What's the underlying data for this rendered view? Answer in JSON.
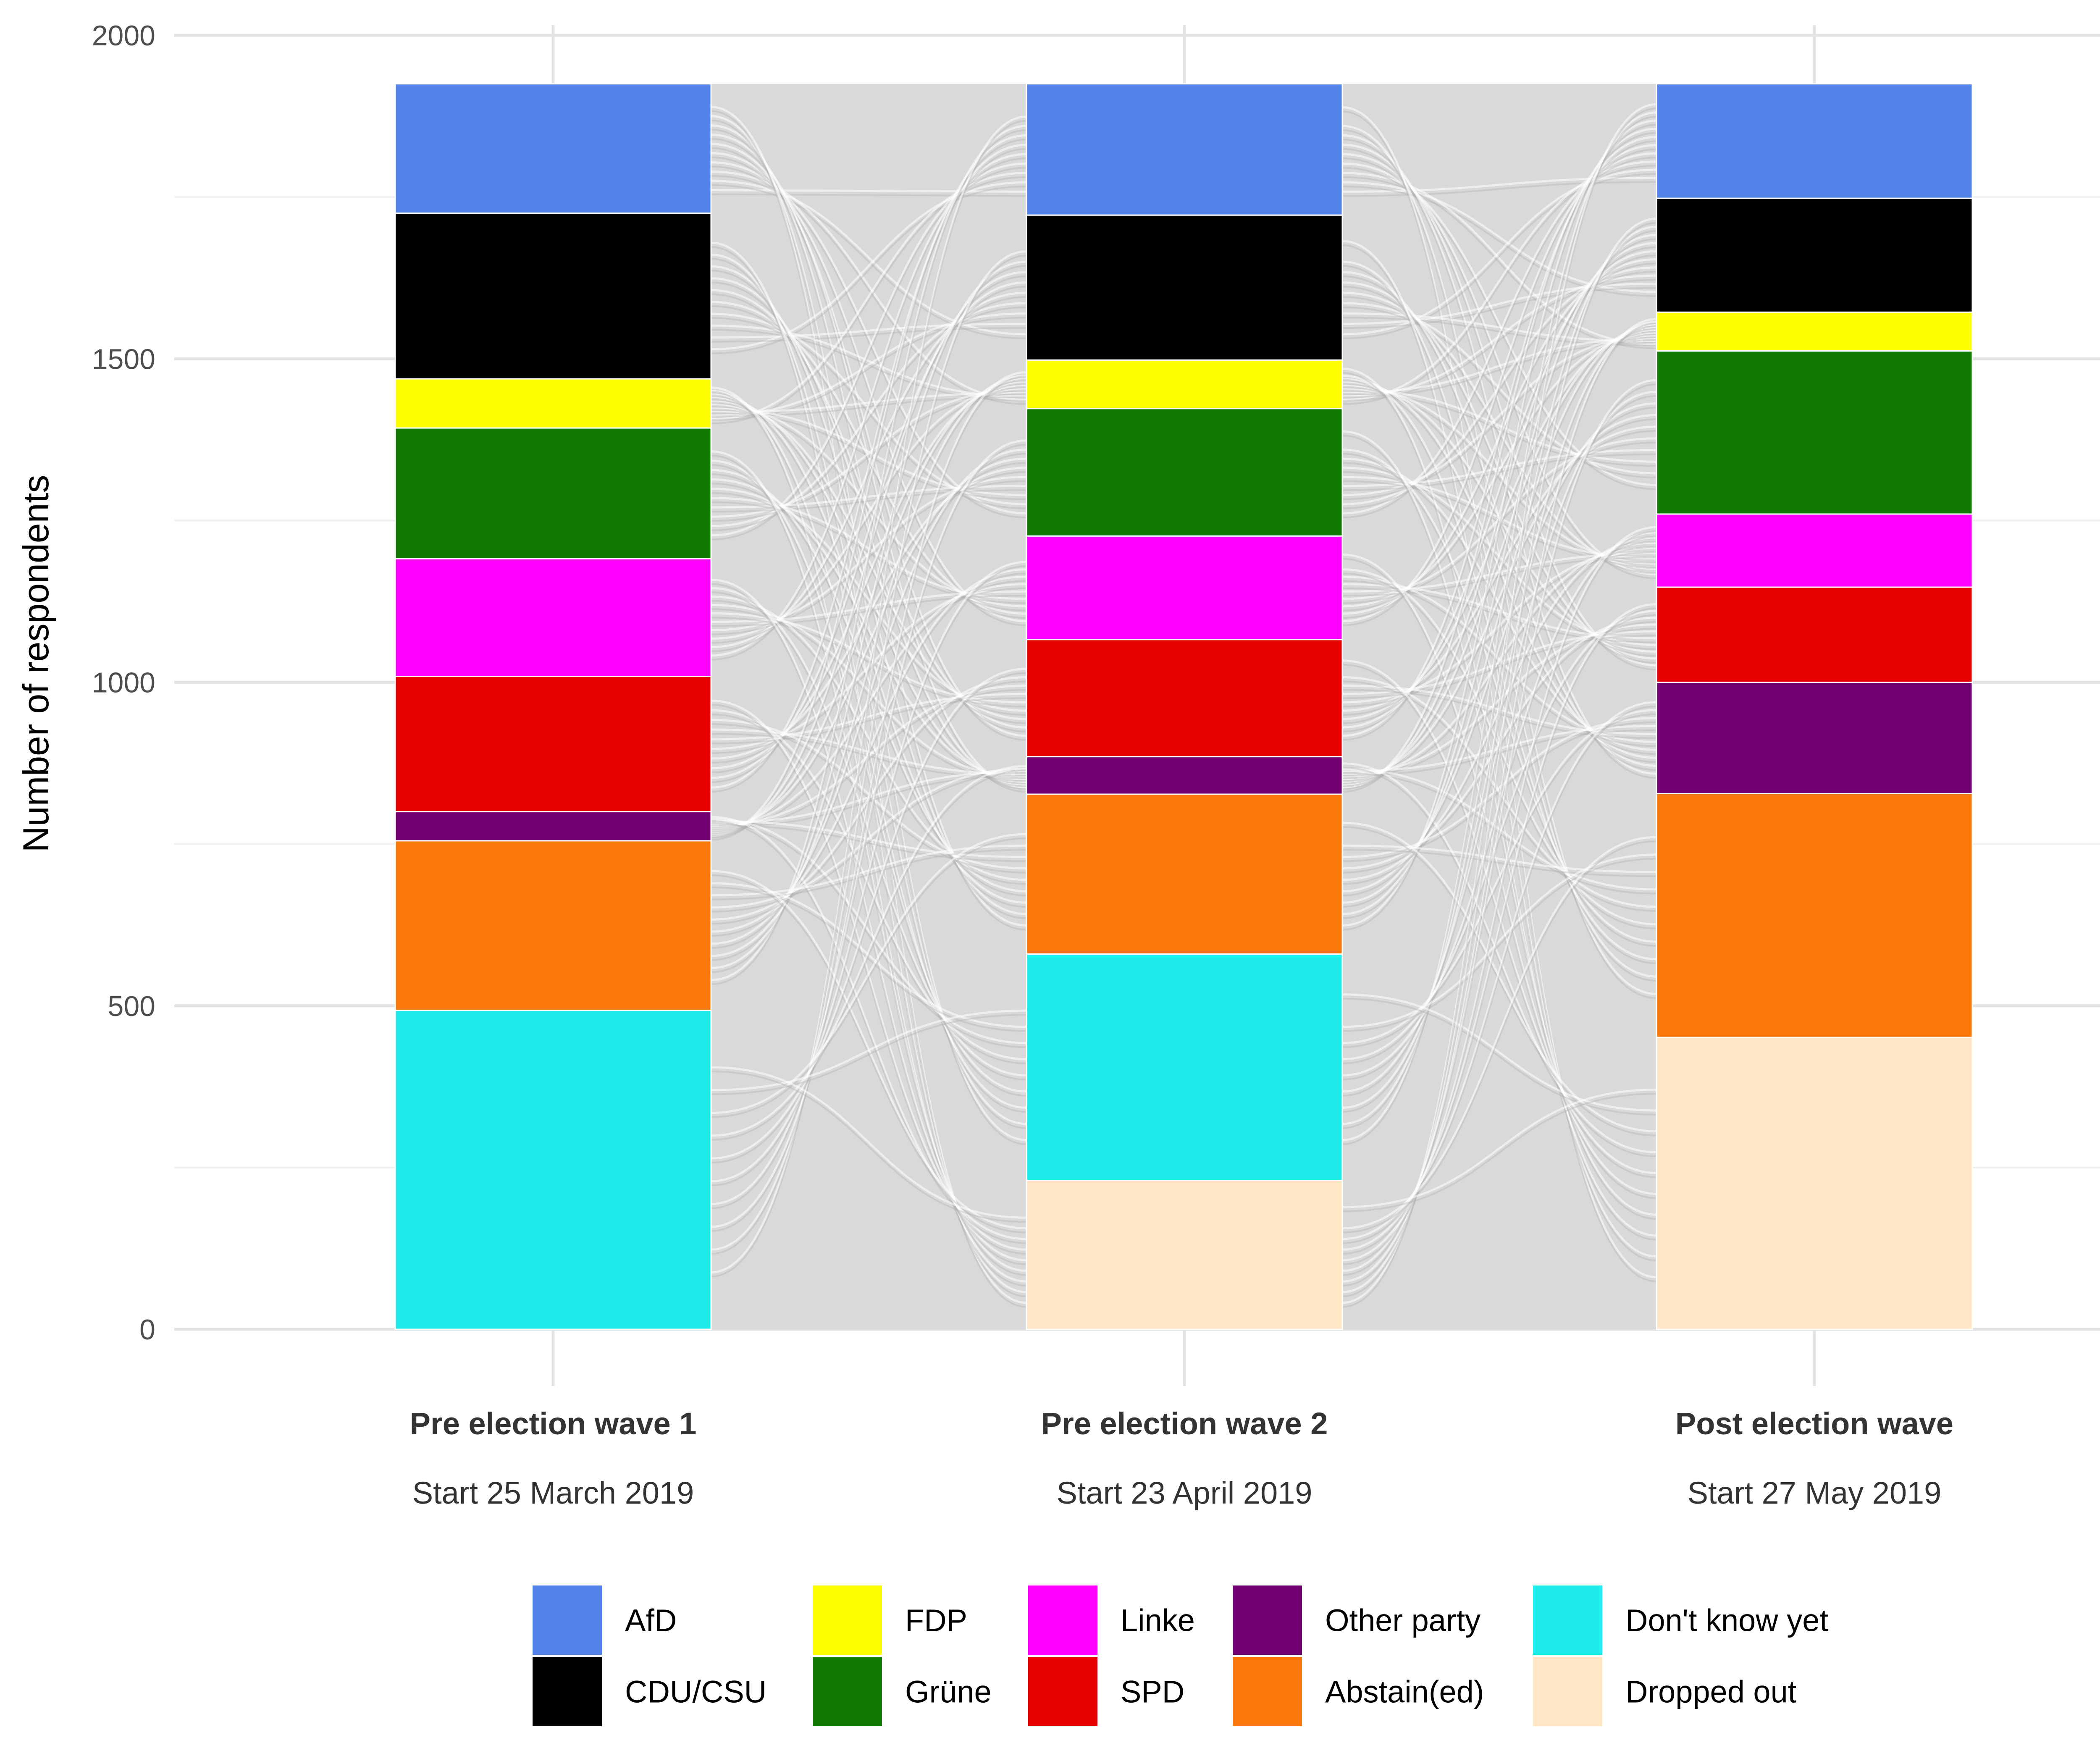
{
  "chart_data": {
    "type": "alluvial",
    "ylabel": "Number of respondents",
    "ylim": [
      0,
      2000
    ],
    "yticks": [
      0,
      500,
      1000,
      1500,
      2000
    ],
    "grid": true,
    "legend_position": "bottom",
    "stack_order_top_to_bottom": [
      "AfD",
      "CDU/CSU",
      "FDP",
      "Grüne",
      "Linke",
      "SPD",
      "Other party",
      "Abstain(ed)",
      "Don't know yet",
      "Dropped out"
    ],
    "categories": [
      {
        "name": "Pre election wave 1",
        "subtitle": "Start 25 March 2019"
      },
      {
        "name": "Pre election wave 2",
        "subtitle": "Start 23 April 2019"
      },
      {
        "name": "Post election wave",
        "subtitle": "Start 27 May 2019"
      }
    ],
    "series": [
      {
        "name": "AfD",
        "color": "#5282E8",
        "values": [
          200,
          203,
          177
        ]
      },
      {
        "name": "CDU/CSU",
        "color": "#000000",
        "values": [
          256,
          224,
          176
        ]
      },
      {
        "name": "FDP",
        "color": "#FFFF00",
        "values": [
          76,
          75,
          60
        ]
      },
      {
        "name": "Grüne",
        "color": "#117A00",
        "values": [
          202,
          197,
          252
        ]
      },
      {
        "name": "Linke",
        "color": "#FF00FF",
        "values": [
          182,
          160,
          113
        ]
      },
      {
        "name": "SPD",
        "color": "#E60000",
        "values": [
          209,
          181,
          147
        ]
      },
      {
        "name": "Other party",
        "color": "#730073",
        "values": [
          45,
          58,
          172
        ]
      },
      {
        "name": "Abstain(ed)",
        "color": "#FA780A",
        "values": [
          262,
          247,
          377
        ]
      },
      {
        "name": "Don't know yet",
        "color": "#1FEBEB",
        "values": [
          493,
          350,
          0
        ]
      },
      {
        "name": "Dropped out",
        "color": "#FFE6C4",
        "values": [
          0,
          230,
          451
        ]
      }
    ],
    "legend_rows": [
      [
        "AfD",
        "FDP",
        "Linke",
        "Other party",
        "Don't know yet"
      ],
      [
        "CDU/CSU",
        "Grüne",
        "SPD",
        "Abstain(ed)",
        "Dropped out"
      ]
    ],
    "flow_color": "#D9D9D9",
    "flow_line_color": "#B0B0B0"
  }
}
